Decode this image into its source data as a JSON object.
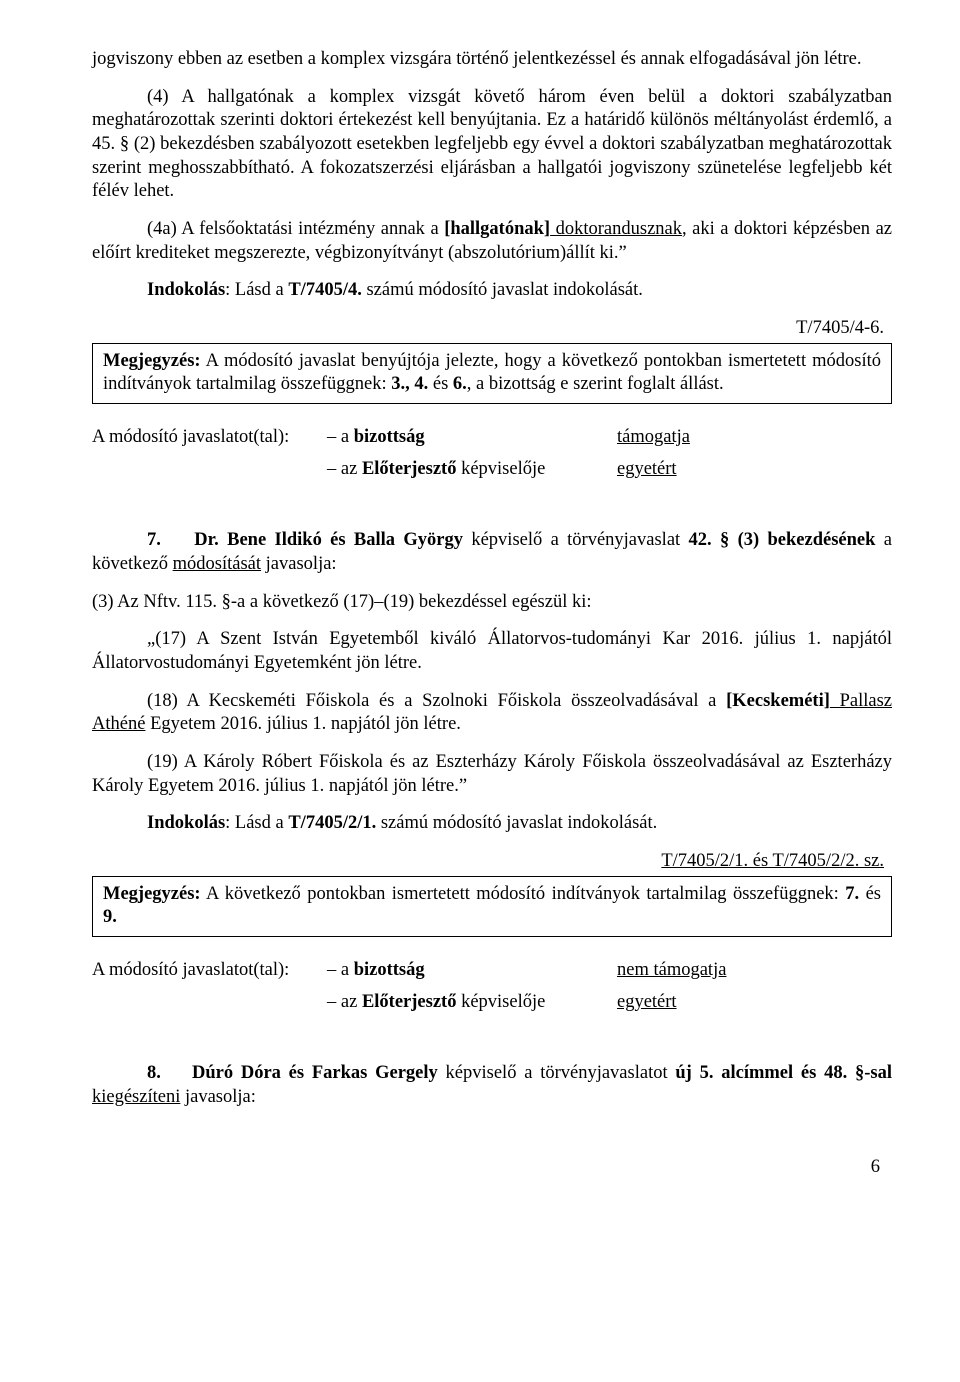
{
  "p1": "jogviszony ebben az esetben a komplex vizsgára történő jelentkezéssel és annak elfogadásával jön létre.",
  "p2": "(4) A hallgatónak a komplex vizsgát követő három éven belül a doktori szabályzatban meghatározottak szerinti doktori értekezést kell benyújtania. Ez a határidő különös méltányolást érdemlő, a 45. § (2) bekezdésben szabályozott esetekben legfeljebb egy évvel a doktori szabályzatban meghatározottak szerint meghosszabbítható. A fokozatszerzési eljárásban a hallgatói jogviszony szünetelése legfeljebb két félév lehet.",
  "p3_a": "(4a) A felsőoktatási intézmény annak a ",
  "p3_b": "[hallgatónak]",
  "p3_c": " doktorandusznak",
  "p3_d": ", aki a doktori képzésben az előírt krediteket megszerezte, végbizonyítványt (abszolutórium)állít ki.”",
  "indok1_a": "Indokolás",
  "indok1_b": ": Lásd a ",
  "indok1_c": "T/7405/4.",
  "indok1_d": " számú módosító javaslat indokolását.",
  "ref1": "T/7405/4-6.",
  "box1_a": "Megjegyzés:",
  "box1_b": " A módosító javaslat benyújtója jelezte, hogy a következő pontokban ismertetett módosító indítványok tartalmilag összefüggnek: ",
  "box1_c": "3., 4.",
  "box1_d": " és ",
  "box1_e": "6.",
  "box1_f": ", a bizottság e szerint foglalt állást.",
  "vote_label": "A módosító javaslatot(tal):",
  "vote_mid1": "– a ",
  "vote_mid1b": "bizottság",
  "vote_mid2a": "– az ",
  "vote_mid2b": "Előterjesztő",
  "vote_mid2c": " képviselője",
  "vote_val1": "támogatja",
  "vote_val2": "egyetért",
  "p7_a": "7.",
  "p7_b": "Dr. Bene Ildikó és Balla György",
  "p7_c": " képviselő a törvényjavaslat ",
  "p7_d": "42. § (3) bekezdésének",
  "p7_e": " a következő ",
  "p7_f": "módosítását",
  "p7_g": " javasolja:",
  "p8": "(3) Az Nftv. 115. §-a a következő (17)–(19) bekezdéssel egészül ki:",
  "p9": "„(17) A Szent István Egyetemből kiváló Állatorvos-tudományi Kar 2016. július 1. napjától Állatorvostudományi Egyetemként jön létre.",
  "p10_a": "(18) A Kecskeméti Főiskola és a Szolnoki Főiskola összeolvadásával a ",
  "p10_b": "[Kecskeméti]",
  "p10_c": " Pallasz Athéné",
  "p10_d": " Egyetem 2016. július 1. napjától jön létre.",
  "p11": "(19) A Károly Róbert Főiskola és az Eszterházy Károly Főiskola összeolvadásával az Eszterházy Károly Egyetem 2016. július 1. napjától jön létre.”",
  "indok2_a": "Indokolás",
  "indok2_b": ": Lásd a ",
  "indok2_c": "T/7405/2/1.",
  "indok2_d": " számú módosító javaslat indokolását.",
  "ref2": "T/7405/2/1. és T/7405/2/2. sz.",
  "box2_a": "Megjegyzés:",
  "box2_b": " A következő pontokban ismertetett módosító indítványok tartalmilag összefüggnek: ",
  "box2_c": "7.",
  "box2_d": " és ",
  "box2_e": "9.",
  "vote2_val1": "nem támogatja",
  "vote2_val2": "egyetért",
  "p12_a": "8.",
  "p12_b": "Dúró Dóra és Farkas Gergely",
  "p12_c": " képviselő a törvényjavaslatot ",
  "p12_d": "új 5. alcímmel és 48. §-sal",
  "p12_e": " kiegészíteni",
  "p12_f": " javasolja:",
  "page_num": "6"
}
